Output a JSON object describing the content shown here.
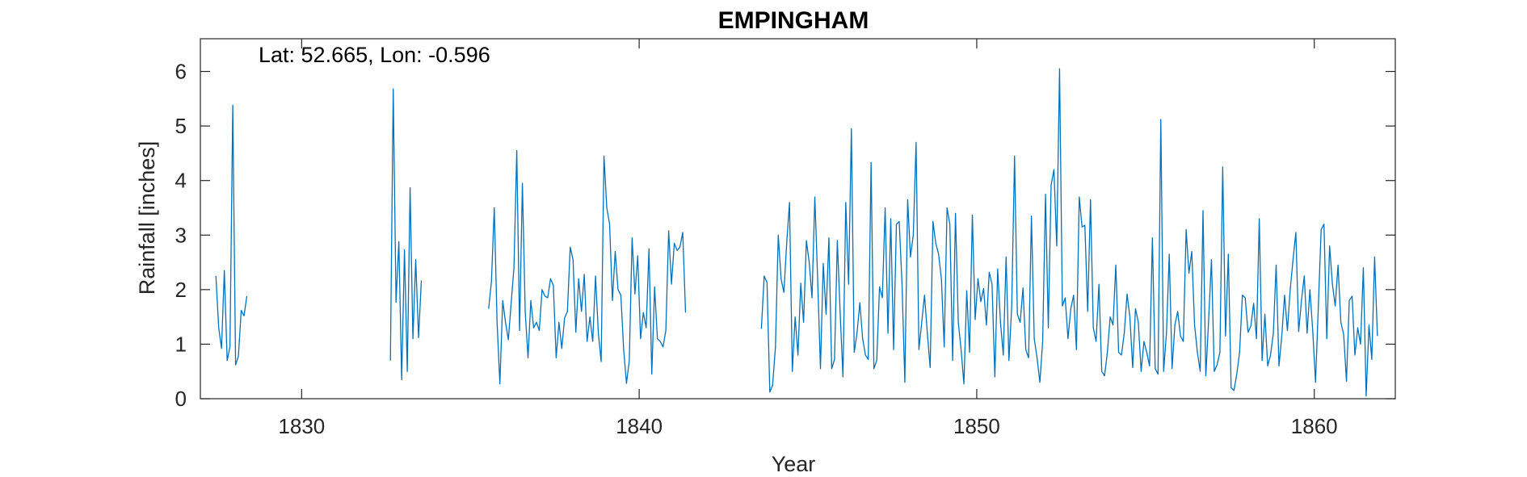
{
  "chart_data": {
    "type": "line",
    "title": "EMPINGHAM",
    "annotation": "Lat: 52.665, Lon: -0.596",
    "xlabel": "Year",
    "ylabel": "Rainfall [inches]",
    "xlim": [
      1827,
      1862.4
    ],
    "ylim": [
      0,
      6.6
    ],
    "xticks": [
      1830,
      1840,
      1850,
      1860
    ],
    "yticks": [
      0,
      1,
      2,
      3,
      4,
      5,
      6
    ],
    "grid": false,
    "line_color": "#0072BD",
    "series": [
      {
        "segments": [
          {
            "start": 1827.46,
            "values": [
              2.25,
              1.3,
              0.92,
              2.35,
              0.7,
              0.95,
              5.38,
              0.62,
              0.78,
              1.62,
              1.52,
              1.88
            ]
          },
          {
            "start": 1832.63,
            "values": [
              0.7,
              5.68,
              1.77,
              2.88,
              0.35,
              2.73,
              0.5,
              3.87,
              1.1,
              2.55,
              1.12,
              2.17
            ]
          },
          {
            "start": 1835.54,
            "values": [
              1.65,
              2.15,
              3.5,
              1.4,
              0.27,
              1.8,
              1.4,
              1.08,
              1.75,
              2.4,
              4.55,
              1.25,
              3.95,
              1.6,
              0.75,
              1.8,
              1.3,
              1.4,
              1.25,
              2.0,
              1.88,
              1.85,
              2.2,
              2.08,
              0.75,
              1.4,
              0.92,
              1.48,
              1.6,
              2.78,
              2.55,
              1.22,
              2.2,
              1.6,
              2.28,
              1.05,
              1.5,
              1.05,
              2.25,
              1.2,
              0.68,
              4.45,
              3.5,
              3.2,
              1.8,
              2.7,
              2.0,
              1.9,
              0.9,
              0.28,
              0.7,
              2.95,
              1.92,
              2.62,
              1.1,
              1.58,
              1.3,
              2.75,
              0.45,
              2.05,
              1.1,
              1.05,
              0.95,
              1.25,
              3.08,
              2.1,
              2.85,
              2.72,
              2.78,
              3.05,
              1.58
            ]
          },
          {
            "start": 1843.62,
            "values": [
              1.28,
              2.25,
              2.13,
              0.12,
              0.25,
              0.95,
              3.0,
              2.2,
              1.95,
              2.85,
              3.6,
              0.5,
              1.5,
              0.8,
              2.12,
              1.4,
              2.9,
              2.5,
              1.85,
              3.7,
              2.2,
              0.55,
              2.48,
              1.55,
              2.95,
              0.55,
              0.72,
              2.9,
              1.58,
              0.4,
              3.6,
              2.1,
              4.95,
              0.85,
              1.2,
              1.76,
              1.1,
              0.8,
              0.72,
              4.33,
              0.55,
              0.7,
              2.05,
              1.85,
              3.5,
              1.2,
              3.3,
              0.9,
              3.2,
              3.25,
              2.1,
              0.3,
              3.65,
              2.6,
              3.0,
              4.7,
              0.9,
              1.4,
              1.9,
              1.2,
              0.57,
              3.25,
              2.85,
              2.65,
              2.2,
              0.95,
              3.5,
              3.2,
              0.7,
              3.4,
              1.4,
              0.9,
              0.27,
              1.98,
              0.85,
              3.37,
              1.45,
              2.2,
              1.78,
              2.02,
              1.35,
              2.32,
              2.1,
              0.4,
              2.38,
              1.4,
              0.8,
              2.6,
              0.7,
              1.7,
              4.45,
              1.55,
              1.4,
              2.03,
              0.9,
              0.75,
              3.35,
              1.1,
              0.75,
              0.3,
              1.05,
              3.75,
              1.3,
              3.92,
              4.2,
              2.8,
              6.05,
              1.7,
              1.85,
              1.1,
              1.65,
              1.9,
              0.9,
              3.7,
              3.15,
              3.18,
              1.6,
              3.65,
              1.3,
              1.05,
              2.1,
              0.5,
              0.42,
              0.85,
              1.5,
              1.35,
              2.45,
              0.85,
              0.8,
              1.2,
              1.92,
              1.5,
              0.57,
              1.65,
              1.4,
              0.5,
              1.05,
              0.85,
              0.6,
              2.95,
              0.55,
              0.45,
              5.12,
              0.5,
              1.2,
              2.65,
              0.55,
              1.35,
              1.6,
              1.15,
              1.05,
              3.1,
              2.3,
              2.7,
              1.35,
              0.85,
              0.5,
              3.45,
              0.42,
              1.45,
              2.55,
              0.5,
              0.62,
              0.85,
              4.25,
              1.15,
              2.65,
              0.2,
              0.15,
              0.45,
              0.85,
              1.9,
              1.85,
              1.22,
              1.33,
              1.75,
              1.1,
              3.3,
              0.7,
              1.55,
              0.6,
              0.8,
              1.2,
              2.45,
              0.6,
              1.15,
              1.9,
              1.25,
              2.0,
              2.55,
              3.05,
              1.23,
              1.8,
              2.25,
              1.2,
              2.0,
              1.25,
              0.3,
              1.7,
              3.1,
              3.2,
              1.1,
              2.8,
              2.1,
              1.7,
              2.45,
              1.4,
              1.18,
              0.32,
              1.8,
              1.88,
              0.8,
              1.3,
              1.0,
              2.4,
              0.05,
              1.35,
              0.72,
              2.6,
              1.15
            ]
          }
        ]
      }
    ]
  }
}
